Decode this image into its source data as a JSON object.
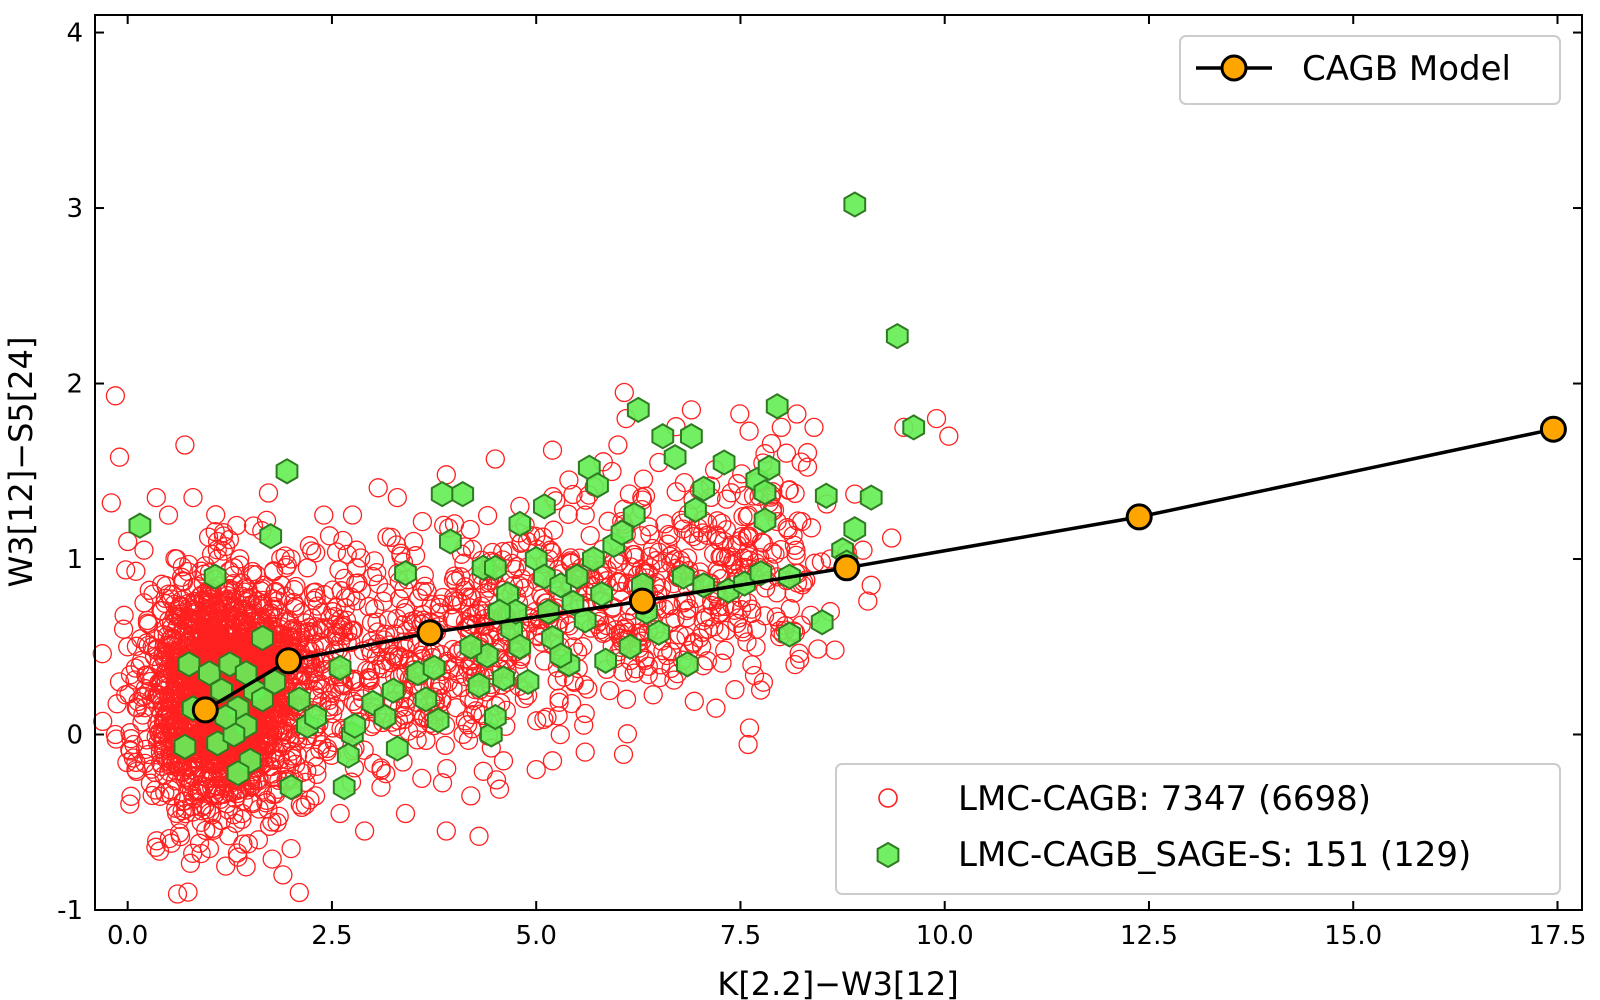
{
  "chart_data": {
    "type": "scatter",
    "title": "",
    "xlabel": "K[2.2]−W3[12]",
    "ylabel": "W3[12]−S5[24]",
    "xlim": [
      -0.4,
      17.8
    ],
    "ylim": [
      -1,
      4.1
    ],
    "grid": false,
    "xticks": [
      0.0,
      2.5,
      5.0,
      7.5,
      10.0,
      12.5,
      15.0,
      17.5
    ],
    "xtick_labels": [
      "0.0",
      "2.5",
      "5.0",
      "7.5",
      "10.0",
      "12.5",
      "15.0",
      "17.5"
    ],
    "yticks": [
      -1,
      0,
      1,
      2,
      3,
      4
    ],
    "ytick_labels": [
      "-1",
      "0",
      "1",
      "2",
      "3",
      "4"
    ],
    "legend_top": {
      "placement": "top-right",
      "entries": [
        "CAGB Model"
      ]
    },
    "legend_bottom": {
      "placement": "bottom-right",
      "entries": [
        "LMC-CAGB: 7347 (6698)",
        "LMC-CAGB_SAGE-S: 151 (129)"
      ]
    },
    "series": [
      {
        "name": "CAGB Model",
        "marker": "circle-line",
        "color": "#ffa500",
        "x": [
          0.95,
          1.97,
          3.7,
          6.3,
          8.8,
          12.38,
          17.45
        ],
        "y": [
          0.14,
          0.42,
          0.58,
          0.76,
          0.95,
          1.24,
          1.74
        ]
      },
      {
        "name": "LMC-CAGB: 7347 (6698)",
        "marker": "open-circle",
        "color": "#ff2020",
        "outliers": [
          [
            -0.15,
            1.93
          ],
          [
            -0.1,
            1.58
          ],
          [
            0.35,
            1.35
          ],
          [
            0.7,
            1.65
          ],
          [
            0.8,
            1.35
          ],
          [
            -0.2,
            1.32
          ],
          [
            0.0,
            1.1
          ],
          [
            0.1,
            0.93
          ],
          [
            -0.15,
            0.0
          ],
          [
            -0.1,
            0.3
          ],
          [
            0.0,
            0.5
          ],
          [
            0.5,
            0.8
          ],
          [
            0.3,
            0.5
          ],
          [
            0.2,
            1.05
          ],
          [
            0.5,
            1.25
          ],
          [
            1.2,
            -0.75
          ],
          [
            1.0,
            -0.65
          ],
          [
            1.6,
            -0.6
          ],
          [
            1.9,
            -0.8
          ],
          [
            2.1,
            -0.9
          ],
          [
            2.0,
            -0.65
          ],
          [
            2.9,
            -0.55
          ],
          [
            3.4,
            -0.45
          ],
          [
            3.9,
            -0.55
          ],
          [
            4.3,
            -0.58
          ],
          [
            5.0,
            -0.2
          ],
          [
            5.2,
            -0.15
          ],
          [
            5.6,
            -0.1
          ],
          [
            6.0,
            1.65
          ],
          [
            6.1,
            1.8
          ],
          [
            6.5,
            1.55
          ],
          [
            6.9,
            1.85
          ],
          [
            7.3,
            1.1
          ],
          [
            7.8,
            1.6
          ],
          [
            8.0,
            1.75
          ],
          [
            8.4,
            1.75
          ],
          [
            8.9,
            1.37
          ],
          [
            9.5,
            1.75
          ],
          [
            9.9,
            1.8
          ],
          [
            10.05,
            1.7
          ],
          [
            8.6,
            1.0
          ],
          [
            9.0,
            1.05
          ],
          [
            9.35,
            1.12
          ],
          [
            8.3,
            0.88
          ],
          [
            8.05,
            0.62
          ],
          [
            7.2,
            0.15
          ],
          [
            7.7,
            0.6
          ],
          [
            7.0,
            0.55
          ],
          [
            6.6,
            0.45
          ],
          [
            5.6,
            0.12
          ],
          [
            4.5,
            1.57
          ],
          [
            3.9,
            1.48
          ],
          [
            5.2,
            1.62
          ],
          [
            3.3,
            1.35
          ],
          [
            2.4,
            1.25
          ],
          [
            1.7,
            1.22
          ],
          [
            2.0,
            1.0
          ],
          [
            1.1,
            1.1
          ],
          [
            0.6,
            1.0
          ],
          [
            4.2,
            -0.35
          ],
          [
            3.1,
            -0.3
          ],
          [
            2.6,
            -0.45
          ],
          [
            1.5,
            -0.3
          ],
          [
            0.75,
            -0.3
          ],
          [
            0.4,
            -0.1
          ],
          [
            0.9,
            -0.5
          ],
          [
            5.9,
            0.25
          ],
          [
            6.2,
            0.35
          ],
          [
            6.8,
            0.75
          ],
          [
            7.5,
            0.95
          ],
          [
            8.6,
            0.7
          ],
          [
            9.1,
            0.85
          ],
          [
            5.6,
            1.25
          ],
          [
            4.8,
            1.3
          ],
          [
            3.5,
            1.1
          ],
          [
            2.8,
            1.05
          ],
          [
            2.2,
            0.95
          ],
          [
            1.3,
            0.95
          ],
          [
            0.2,
            0.75
          ],
          [
            -0.05,
            0.6
          ],
          [
            0.1,
            -0.2
          ],
          [
            0.6,
            -0.45
          ],
          [
            1.4,
            -0.45
          ],
          [
            2.3,
            -0.35
          ],
          [
            3.6,
            -0.25
          ],
          [
            4.6,
            -0.15
          ],
          [
            6.4,
            0.95
          ],
          [
            7.6,
            1.25
          ],
          [
            5.4,
            1.45
          ],
          [
            4.0,
            1.2
          ],
          [
            3.0,
            0.9
          ]
        ]
      },
      {
        "name": "LMC-CAGB_SAGE-S: 151 (129)",
        "marker": "hexagon",
        "color": "#66ee55",
        "points": [
          [
            0.15,
            1.19
          ],
          [
            1.07,
            0.9
          ],
          [
            1.75,
            1.13
          ],
          [
            1.95,
            1.5
          ],
          [
            0.75,
            0.4
          ],
          [
            0.8,
            0.15
          ],
          [
            1.0,
            0.35
          ],
          [
            1.15,
            0.25
          ],
          [
            1.25,
            0.4
          ],
          [
            1.35,
            0.15
          ],
          [
            1.45,
            0.05
          ],
          [
            1.55,
            0.25
          ],
          [
            1.65,
            0.55
          ],
          [
            1.1,
            -0.05
          ],
          [
            1.3,
            0.0
          ],
          [
            1.5,
            -0.15
          ],
          [
            1.35,
            -0.22
          ],
          [
            0.7,
            -0.07
          ],
          [
            1.2,
            0.1
          ],
          [
            1.45,
            0.35
          ],
          [
            1.65,
            0.2
          ],
          [
            1.8,
            0.3
          ],
          [
            2.1,
            0.2
          ],
          [
            2.2,
            0.05
          ],
          [
            2.3,
            0.1
          ],
          [
            2.6,
            0.38
          ],
          [
            2.75,
            0.0
          ],
          [
            2.78,
            0.05
          ],
          [
            2.7,
            -0.12
          ],
          [
            2.65,
            -0.3
          ],
          [
            2.0,
            -0.3
          ],
          [
            3.0,
            0.18
          ],
          [
            3.15,
            0.1
          ],
          [
            3.25,
            0.25
          ],
          [
            3.3,
            -0.08
          ],
          [
            3.55,
            0.35
          ],
          [
            3.75,
            0.38
          ],
          [
            3.65,
            0.2
          ],
          [
            3.8,
            0.08
          ],
          [
            3.4,
            0.92
          ],
          [
            3.85,
            1.37
          ],
          [
            4.1,
            1.37
          ],
          [
            3.95,
            1.1
          ],
          [
            4.3,
            0.28
          ],
          [
            4.4,
            0.45
          ],
          [
            4.45,
            0.0
          ],
          [
            4.5,
            0.1
          ],
          [
            4.6,
            0.32
          ],
          [
            4.7,
            0.6
          ],
          [
            4.8,
            0.5
          ],
          [
            4.9,
            0.3
          ],
          [
            4.35,
            0.95
          ],
          [
            4.5,
            0.95
          ],
          [
            4.65,
            0.8
          ],
          [
            4.75,
            0.7
          ],
          [
            4.8,
            1.2
          ],
          [
            5.0,
            1.0
          ],
          [
            5.1,
            0.9
          ],
          [
            5.2,
            0.55
          ],
          [
            5.15,
            0.7
          ],
          [
            5.3,
            0.85
          ],
          [
            5.4,
            0.4
          ],
          [
            5.3,
            0.45
          ],
          [
            5.5,
            0.9
          ],
          [
            5.6,
            0.65
          ],
          [
            5.7,
            1.0
          ],
          [
            5.8,
            0.8
          ],
          [
            5.85,
            0.42
          ],
          [
            5.1,
            1.3
          ],
          [
            5.65,
            1.52
          ],
          [
            5.75,
            1.42
          ],
          [
            5.95,
            1.08
          ],
          [
            6.05,
            1.15
          ],
          [
            6.15,
            0.5
          ],
          [
            6.25,
            1.85
          ],
          [
            6.2,
            1.25
          ],
          [
            6.3,
            0.85
          ],
          [
            6.35,
            0.7
          ],
          [
            6.5,
            0.58
          ],
          [
            6.55,
            1.7
          ],
          [
            6.7,
            1.58
          ],
          [
            6.9,
            1.7
          ],
          [
            6.95,
            1.28
          ],
          [
            6.8,
            0.9
          ],
          [
            7.05,
            1.4
          ],
          [
            7.05,
            0.85
          ],
          [
            7.3,
            1.55
          ],
          [
            7.35,
            0.82
          ],
          [
            7.55,
            0.86
          ],
          [
            7.7,
            1.45
          ],
          [
            7.8,
            1.22
          ],
          [
            7.85,
            1.52
          ],
          [
            7.8,
            1.38
          ],
          [
            7.95,
            1.87
          ],
          [
            7.75,
            0.92
          ],
          [
            8.1,
            0.9
          ],
          [
            8.1,
            0.57
          ],
          [
            8.5,
            0.64
          ],
          [
            8.55,
            1.36
          ],
          [
            8.75,
            1.05
          ],
          [
            8.8,
            0.98
          ],
          [
            8.9,
            1.17
          ],
          [
            9.1,
            1.35
          ],
          [
            8.9,
            3.02
          ],
          [
            9.42,
            2.27
          ],
          [
            9.62,
            1.75
          ],
          [
            5.45,
            0.75
          ],
          [
            4.55,
            0.7
          ],
          [
            6.85,
            0.4
          ],
          [
            4.2,
            0.5
          ]
        ]
      }
    ]
  }
}
